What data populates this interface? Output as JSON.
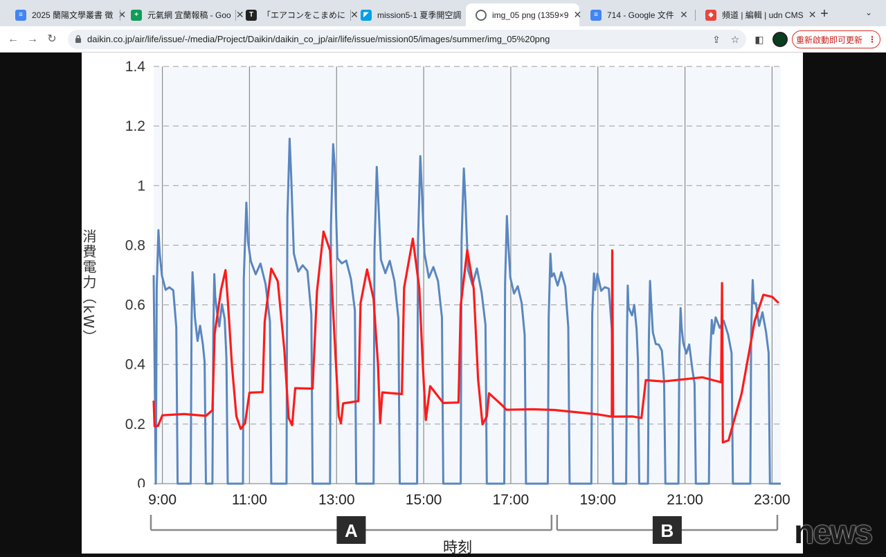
{
  "tabs": [
    {
      "title": "2025 蘭陽文學叢書 徵",
      "icon": "google-docs-icon",
      "color": "#4285f4"
    },
    {
      "title": "元氣網 宜蘭報稿 - Goo",
      "icon": "google-sheets-icon",
      "color": "#0f9d58"
    },
    {
      "title": "「エアコンをこまめに",
      "icon": "itmedia-icon",
      "color": "#222222"
    },
    {
      "title": "mission5-1 夏季開空調",
      "icon": "daikin-icon",
      "color": "#00a0e9"
    },
    {
      "title": "img_05 png (1359×9",
      "icon": "globe-icon",
      "color": "#5f6368"
    },
    {
      "title": "714 - Google 文件",
      "icon": "google-docs-icon",
      "color": "#4285f4"
    },
    {
      "title": "頻道 | 編輯 | udn CMS",
      "icon": "udn-icon",
      "color": "#e8453c"
    }
  ],
  "toolbar": {
    "url": "daikin.co.jp/air/life/issue/-/media/Project/Daikin/daikin_co_jp/air/life/issue/mission05/images/summer/img_05%20png",
    "update_label": "重新啟動即可更新"
  },
  "watermark": "news",
  "chart_data": {
    "type": "line",
    "ylabel": "消費電力（kW）",
    "xlabel": "時刻",
    "ylim": [
      0,
      1.4
    ],
    "yticks": [
      "0",
      "0.2",
      "0.4",
      "0.6",
      "0.8",
      "1",
      "1.2",
      "1.4"
    ],
    "xticks": [
      "9:00",
      "11:00",
      "13:00",
      "15:00",
      "17:00",
      "19:00",
      "21:00",
      "23:00"
    ],
    "x_range_hours": [
      8.8,
      23.2
    ],
    "sections": [
      {
        "label": "A",
        "from": 8.8,
        "to": 18.0
      },
      {
        "label": "B",
        "from": 18.0,
        "to": 23.2
      }
    ],
    "series": [
      {
        "color": "#5b86bf",
        "cycles": [
          {
            "on": 8.85,
            "off": 9.35,
            "peak": 0.87,
            "plateau": 0.65
          },
          {
            "on": 9.65,
            "off": 10.0,
            "peak": 0.72,
            "plateau": 0.5
          },
          {
            "on": 10.15,
            "off": 10.5,
            "peak": 0.7,
            "plateau": 0.55
          },
          {
            "on": 10.85,
            "off": 11.5,
            "peak": 0.92,
            "plateau": 0.7
          },
          {
            "on": 11.85,
            "off": 12.45,
            "peak": 1.16,
            "plateau": 0.72
          },
          {
            "on": 12.85,
            "off": 13.45,
            "peak": 1.16,
            "plateau": 0.72
          },
          {
            "on": 13.85,
            "off": 14.45,
            "peak": 1.05,
            "plateau": 0.72
          },
          {
            "on": 14.85,
            "off": 15.45,
            "peak": 1.09,
            "plateau": 0.7
          },
          {
            "on": 15.85,
            "off": 16.45,
            "peak": 1.06,
            "plateau": 0.68
          },
          {
            "on": 16.85,
            "off": 17.35,
            "peak": 0.88,
            "plateau": 0.62
          },
          {
            "on": 17.85,
            "off": 18.35,
            "peak": 0.78,
            "plateau": 0.67
          },
          {
            "on": 18.85,
            "off": 19.35,
            "peak": 0.73,
            "plateau": 0.65
          },
          {
            "on": 19.65,
            "off": 19.95,
            "peak": 0.66,
            "plateau": 0.55
          },
          {
            "on": 20.15,
            "off": 20.55,
            "peak": 0.67,
            "plateau": 0.45
          },
          {
            "on": 20.85,
            "off": 21.25,
            "peak": 0.61,
            "plateau": 0.42
          },
          {
            "on": 21.55,
            "off": 22.1,
            "peak": 0.56,
            "plateau": 0.53
          },
          {
            "on": 22.5,
            "off": 22.95,
            "peak": 0.7,
            "plateau": 0.55
          }
        ]
      },
      {
        "color": "#ff1a1a",
        "points": [
          [
            8.8,
            0.28
          ],
          [
            8.82,
            0.2
          ],
          [
            8.9,
            0.19
          ],
          [
            9.0,
            0.23
          ],
          [
            9.5,
            0.23
          ],
          [
            10.0,
            0.23
          ],
          [
            10.15,
            0.24
          ],
          [
            10.2,
            0.5
          ],
          [
            10.35,
            0.65
          ],
          [
            10.45,
            0.72
          ],
          [
            10.5,
            0.62
          ],
          [
            10.6,
            0.4
          ],
          [
            10.7,
            0.22
          ],
          [
            10.8,
            0.19
          ],
          [
            10.9,
            0.21
          ],
          [
            11.0,
            0.31
          ],
          [
            11.3,
            0.31
          ],
          [
            11.35,
            0.55
          ],
          [
            11.5,
            0.72
          ],
          [
            11.65,
            0.68
          ],
          [
            11.8,
            0.45
          ],
          [
            11.9,
            0.22
          ],
          [
            11.98,
            0.19
          ],
          [
            12.05,
            0.32
          ],
          [
            12.45,
            0.32
          ],
          [
            12.55,
            0.65
          ],
          [
            12.7,
            0.84
          ],
          [
            12.85,
            0.78
          ],
          [
            12.95,
            0.5
          ],
          [
            13.05,
            0.22
          ],
          [
            13.1,
            0.2
          ],
          [
            13.15,
            0.27
          ],
          [
            13.5,
            0.27
          ],
          [
            13.55,
            0.6
          ],
          [
            13.7,
            0.72
          ],
          [
            13.85,
            0.62
          ],
          [
            13.95,
            0.4
          ],
          [
            14.0,
            0.2
          ],
          [
            14.05,
            0.3
          ],
          [
            14.5,
            0.3
          ],
          [
            14.55,
            0.65
          ],
          [
            14.75,
            0.82
          ],
          [
            14.9,
            0.65
          ],
          [
            14.98,
            0.4
          ],
          [
            15.05,
            0.22
          ],
          [
            15.15,
            0.32
          ],
          [
            15.45,
            0.27
          ],
          [
            15.8,
            0.27
          ],
          [
            15.85,
            0.6
          ],
          [
            16.0,
            0.78
          ],
          [
            16.15,
            0.65
          ],
          [
            16.25,
            0.35
          ],
          [
            16.35,
            0.2
          ],
          [
            16.45,
            0.22
          ],
          [
            16.5,
            0.3
          ],
          [
            16.8,
            0.27
          ],
          [
            16.9,
            0.25
          ],
          [
            17.5,
            0.25
          ],
          [
            18.0,
            0.24
          ],
          [
            19.0,
            0.23
          ],
          [
            19.32,
            0.23
          ],
          [
            19.33,
            0.78
          ],
          [
            19.35,
            0.23
          ],
          [
            19.8,
            0.23
          ],
          [
            20.0,
            0.22
          ],
          [
            20.1,
            0.35
          ],
          [
            20.5,
            0.35
          ],
          [
            21.4,
            0.35
          ],
          [
            21.83,
            0.34
          ],
          [
            21.85,
            0.68
          ],
          [
            21.87,
            0.14
          ],
          [
            22.0,
            0.15
          ],
          [
            22.3,
            0.3
          ],
          [
            22.6,
            0.55
          ],
          [
            22.8,
            0.63
          ],
          [
            23.0,
            0.63
          ],
          [
            23.15,
            0.6
          ]
        ]
      }
    ]
  }
}
